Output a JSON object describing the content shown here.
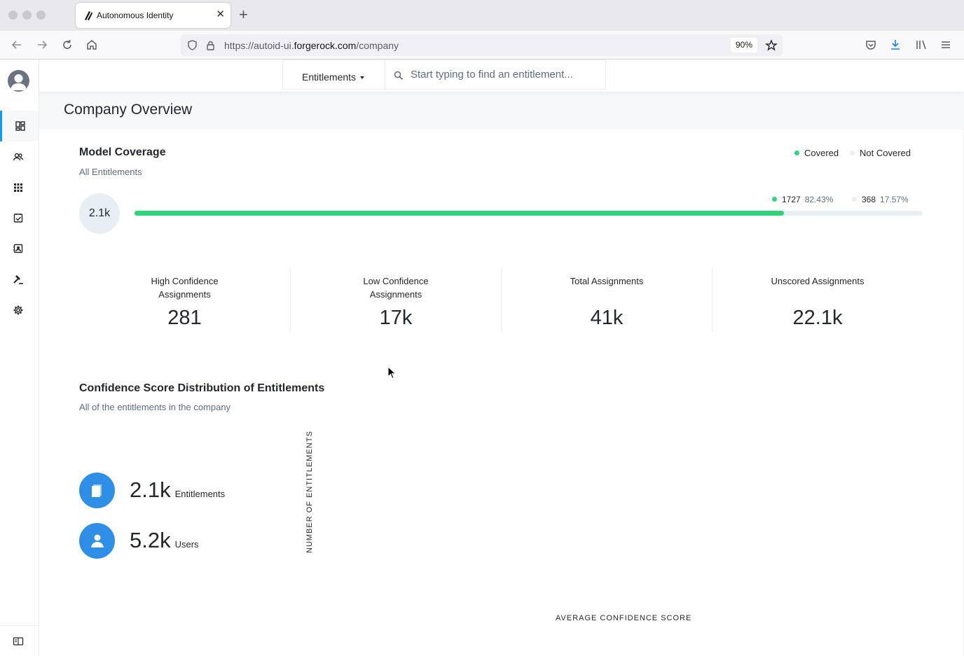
{
  "browser": {
    "tab_title": "Autonomous Identity",
    "url_prefix": "https://autoid-ui.",
    "url_domain": "forgerock.com",
    "url_path": "/company",
    "zoom": "90%"
  },
  "toolbar": {
    "dropdown_label": "Entitlements",
    "search_placeholder": "Start typing to find an entitlement..."
  },
  "page": {
    "title": "Company Overview"
  },
  "coverage": {
    "title": "Model Coverage",
    "subtitle": "All Entitlements",
    "legend": {
      "covered": "Covered",
      "not_covered": "Not Covered"
    },
    "total": "2.1k",
    "covered_count": "1727",
    "covered_pct": "82.43%",
    "not_covered_count": "368",
    "not_covered_pct": "17.57%",
    "covered_fraction": 0.8243,
    "colors": {
      "covered": "#2ed47a",
      "not_covered": "#e7eef4"
    }
  },
  "stats": [
    {
      "label_line1": "High Confidence",
      "label_line2": "Assignments",
      "value": "281"
    },
    {
      "label_line1": "Low Confidence",
      "label_line2": "Assignments",
      "value": "17k"
    },
    {
      "label_line1": "Total Assignments",
      "label_line2": "",
      "value": "41k"
    },
    {
      "label_line1": "Unscored Assignments",
      "label_line2": "",
      "value": "22.1k"
    }
  ],
  "distribution": {
    "title": "Confidence Score Distribution of Entitlements",
    "subtitle": "All of the entitlements in the company",
    "entitlements_value": "2.1k",
    "entitlements_label": "Entitlements",
    "users_value": "5.2k",
    "users_label": "Users",
    "y_axis_label": "NUMBER OF ENTITLEMENTS",
    "x_axis_label": "AVERAGE CONFIDENCE SCORE"
  },
  "icons": {
    "nav": [
      "dashboard-icon",
      "users-icon",
      "apps-grid-icon",
      "checklist-icon",
      "contact-card-icon",
      "gavel-icon",
      "gear-icon"
    ],
    "bottom": "panel-toggle-icon"
  }
}
